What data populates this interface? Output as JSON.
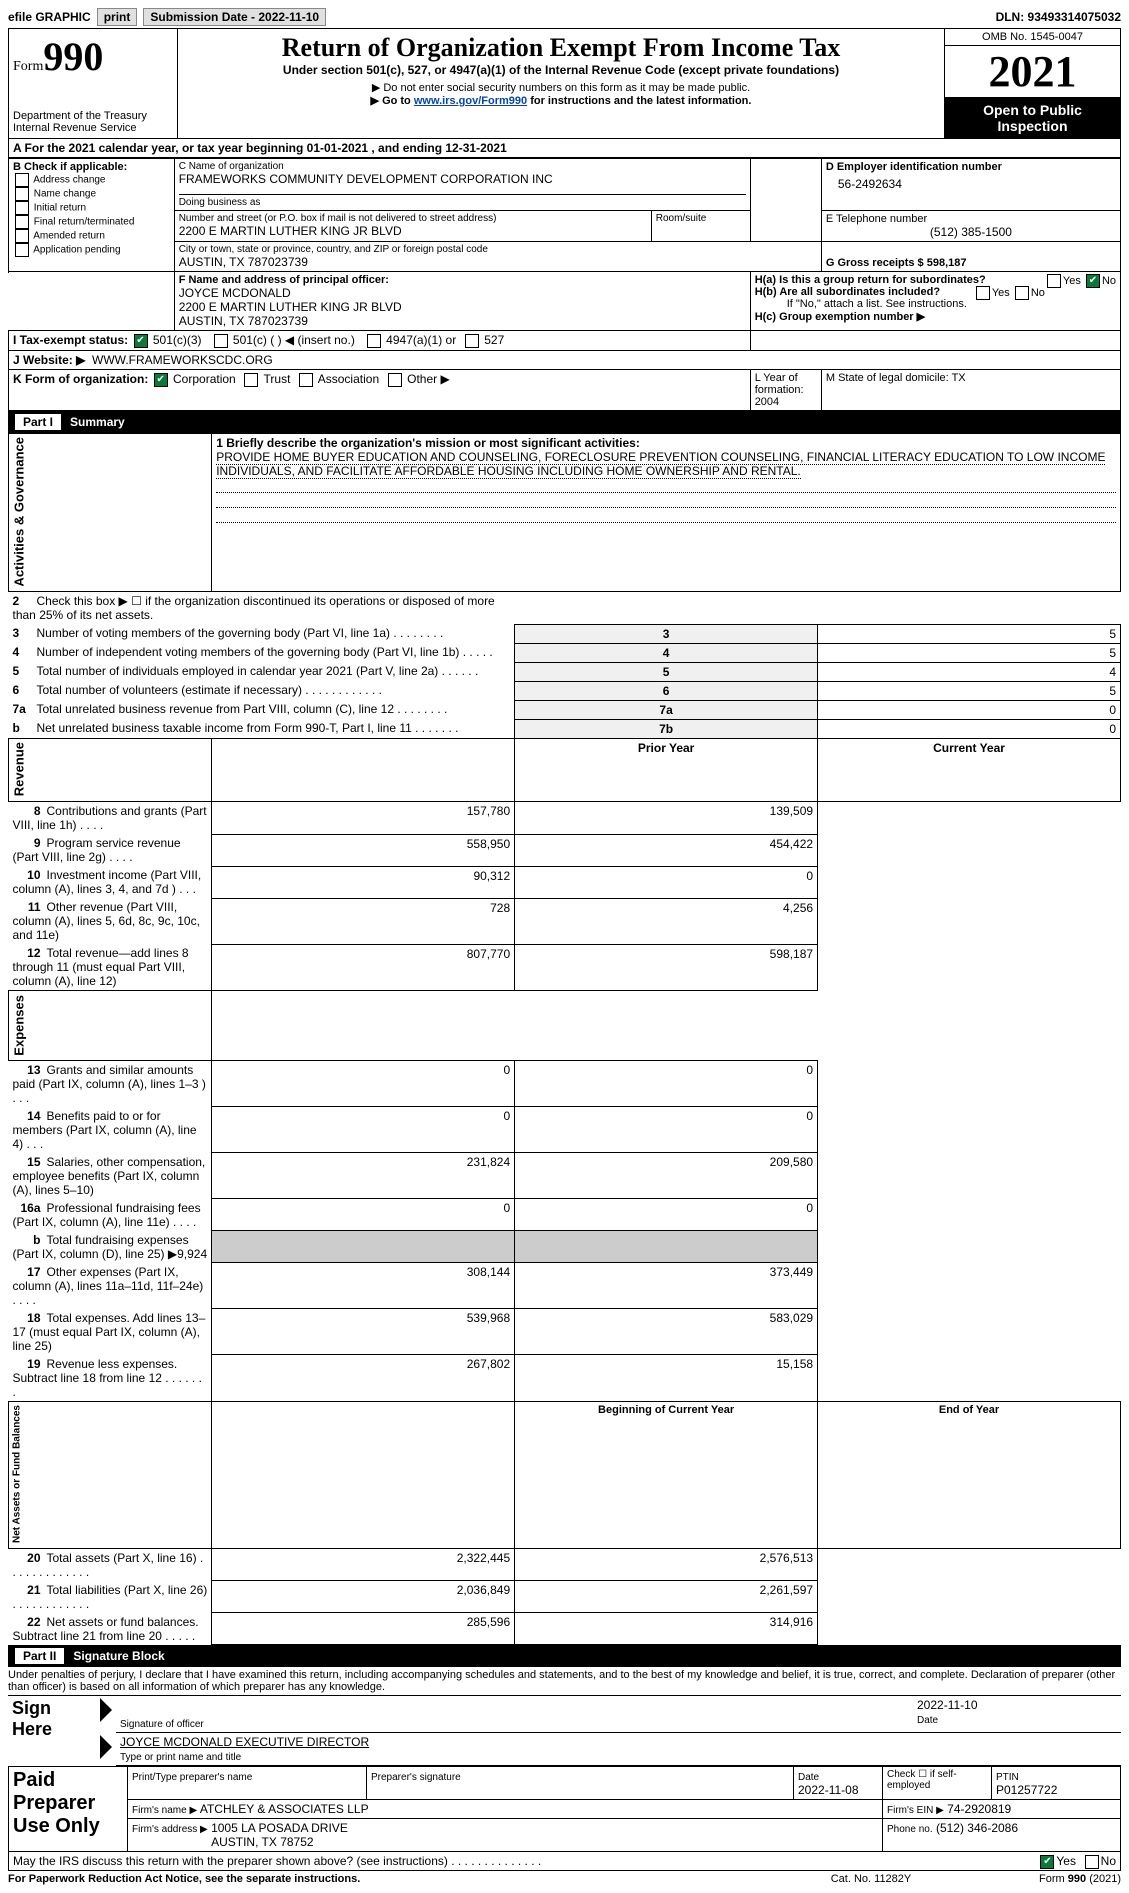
{
  "header": {
    "efile_label": "efile GRAPHIC",
    "print_btn": "print",
    "submission_label": "Submission Date - 2022-11-10",
    "dln_label": "DLN: 93493314075032",
    "form_word": "Form",
    "form_num": "990",
    "dept": "Department of the Treasury\nInternal Revenue Service",
    "title": "Return of Organization Exempt From Income Tax",
    "subtitle": "Under section 501(c), 527, or 4947(a)(1) of the Internal Revenue Code (except private foundations)",
    "note1": "▶ Do not enter social security numbers on this form as it may be made public.",
    "note2_pre": "▶ Go to ",
    "note2_link": "www.irs.gov/Form990",
    "note2_post": " for instructions and the latest information.",
    "omb": "OMB No. 1545-0047",
    "year": "2021",
    "inspection": "Open to Public Inspection"
  },
  "blockA": {
    "period": "A For the 2021 calendar year, or tax year beginning 01-01-2021    , and ending 12-31-2021",
    "b_label": "B Check if applicable:",
    "checks": [
      "Address change",
      "Name change",
      "Initial return",
      "Final return/terminated",
      "Amended return",
      "Application pending"
    ],
    "c_name_label": "C Name of organization",
    "org_name": "FRAMEWORKS COMMUNITY DEVELOPMENT CORPORATION INC",
    "dba_label": "Doing business as",
    "addr_label": "Number and street (or P.O. box if mail is not delivered to street address)",
    "room_label": "Room/suite",
    "addr": "2200 E MARTIN LUTHER KING JR BLVD",
    "city_label": "City or town, state or province, country, and ZIP or foreign postal code",
    "city": "AUSTIN, TX  787023739",
    "d_label": "D Employer identification number",
    "ein": "56-2492634",
    "e_label": "E Telephone number",
    "phone": "(512) 385-1500",
    "g_label": "G Gross receipts $ 598,187",
    "f_label": "F Name and address of principal officer:",
    "officer": "JOYCE MCDONALD\n2200 E MARTIN LUTHER KING JR BLVD\nAUSTIN, TX  787023739",
    "ha": "H(a)  Is this a group return for subordinates?",
    "hb": "H(b)  Are all subordinates included?",
    "hb_note": "If \"No,\" attach a list. See instructions.",
    "hc": "H(c)  Group exemption number ▶",
    "yes": "Yes",
    "no": "No",
    "i_label": "I     Tax-exempt status:",
    "i_opts": [
      "501(c)(3)",
      "501(c) (  ) ◀ (insert no.)",
      "4947(a)(1) or",
      "527"
    ],
    "j_label": "J     Website: ▶",
    "website": "WWW.FRAMEWORKSCDC.ORG",
    "k_label": "K Form of organization:",
    "k_opts": [
      "Corporation",
      "Trust",
      "Association",
      "Other ▶"
    ],
    "l_label": "L Year of formation: 2004",
    "m_label": "M State of legal domicile: TX"
  },
  "part1": {
    "title": "Part I",
    "name": "Summary",
    "q1_label": "1  Briefly describe the organization's mission or most significant activities:",
    "mission": "PROVIDE HOME BUYER EDUCATION AND COUNSELING, FORECLOSURE PREVENTION COUNSELING, FINANCIAL LITERACY EDUCATION TO LOW INCOME INDIVIDUALS, AND FACILITATE AFFORDABLE HOUSING INCLUDING HOME OWNERSHIP AND RENTAL.",
    "sections": {
      "gov": "Activities & Governance",
      "rev": "Revenue",
      "exp": "Expenses",
      "net": "Net Assets or Fund Balances"
    },
    "lines_gov": [
      {
        "n": "2",
        "t": "Check this box ▶ ☐  if the organization discontinued its operations or disposed of more than 25% of its net assets.",
        "box": "",
        "v": ""
      },
      {
        "n": "3",
        "t": "Number of voting members of the governing body (Part VI, line 1a)   .    .    .    .    .    .    .    .",
        "box": "3",
        "v": "5"
      },
      {
        "n": "4",
        "t": "Number of independent voting members of the governing body (Part VI, line 1b)   .    .    .    .    .",
        "box": "4",
        "v": "5"
      },
      {
        "n": "5",
        "t": "Total number of individuals employed in calendar year 2021 (Part V, line 2a)   .    .    .    .    .    .",
        "box": "5",
        "v": "4"
      },
      {
        "n": "6",
        "t": "Total number of volunteers (estimate if necessary)    .    .    .    .    .    .    .    .    .    .    .    .",
        "box": "6",
        "v": "5"
      },
      {
        "n": "7a",
        "t": "Total unrelated business revenue from Part VIII, column (C), line 12   .    .    .    .    .    .    .    .",
        "box": "7a",
        "v": "0"
      },
      {
        "n": "b",
        "t": "Net unrelated business taxable income from Form 990-T, Part I, line 11   .    .    .    .    .    .    .",
        "box": "7b",
        "v": "0"
      }
    ],
    "col_prior": "Prior Year",
    "col_current": "Current Year",
    "lines_rev": [
      {
        "n": "8",
        "t": "Contributions and grants (Part VIII, line 1h)    .    .    .    .",
        "p": "157,780",
        "c": "139,509"
      },
      {
        "n": "9",
        "t": "Program service revenue (Part VIII, line 2g)     .    .    .    .",
        "p": "558,950",
        "c": "454,422"
      },
      {
        "n": "10",
        "t": "Investment income (Part VIII, column (A), lines 3, 4, and 7d )    .    .    .",
        "p": "90,312",
        "c": "0"
      },
      {
        "n": "11",
        "t": "Other revenue (Part VIII, column (A), lines 5, 6d, 8c, 9c, 10c, and 11e)",
        "p": "728",
        "c": "4,256"
      },
      {
        "n": "12",
        "t": "Total revenue—add lines 8 through 11 (must equal Part VIII, column (A), line 12)",
        "p": "807,770",
        "c": "598,187"
      }
    ],
    "lines_exp": [
      {
        "n": "13",
        "t": "Grants and similar amounts paid (Part IX, column (A), lines 1–3 )    .    .    .",
        "p": "0",
        "c": "0"
      },
      {
        "n": "14",
        "t": "Benefits paid to or for members (Part IX, column (A), line 4)    .    .    .",
        "p": "0",
        "c": "0"
      },
      {
        "n": "15",
        "t": "Salaries, other compensation, employee benefits (Part IX, column (A), lines 5–10)",
        "p": "231,824",
        "c": "209,580"
      },
      {
        "n": "16a",
        "t": "Professional fundraising fees (Part IX, column (A), line 11e)    .    .    .    .",
        "p": "0",
        "c": "0"
      },
      {
        "n": "b",
        "t": "Total fundraising expenses (Part IX, column (D), line 25) ▶9,924",
        "p": "",
        "c": "",
        "shade": true
      },
      {
        "n": "17",
        "t": "Other expenses (Part IX, column (A), lines 11a–11d, 11f–24e)    .    .    .    .",
        "p": "308,144",
        "c": "373,449"
      },
      {
        "n": "18",
        "t": "Total expenses. Add lines 13–17 (must equal Part IX, column (A), line 25)",
        "p": "539,968",
        "c": "583,029"
      },
      {
        "n": "19",
        "t": "Revenue less expenses. Subtract line 18 from line 12  .    .    .    .    .    .    .",
        "p": "267,802",
        "c": "15,158"
      }
    ],
    "col_begin": "Beginning of Current Year",
    "col_end": "End of Year",
    "lines_net": [
      {
        "n": "20",
        "t": "Total assets (Part X, line 16)  .    .    .    .    .    .    .    .    .    .    .    .    .",
        "p": "2,322,445",
        "c": "2,576,513"
      },
      {
        "n": "21",
        "t": "Total liabilities (Part X, line 26)   .    .    .    .    .    .    .    .    .    .    .    .",
        "p": "2,036,849",
        "c": "2,261,597"
      },
      {
        "n": "22",
        "t": "Net assets or fund balances. Subtract line 21 from line 20   .    .    .    .    .",
        "p": "285,596",
        "c": "314,916"
      }
    ]
  },
  "part2": {
    "title": "Part II",
    "name": "Signature Block",
    "perjury": "Under penalties of perjury, I declare that I have examined this return, including accompanying schedules and statements, and to the best of my knowledge and belief, it is true, correct, and complete. Declaration of preparer (other than officer) is based on all information of which preparer has any knowledge.",
    "sign_here": "Sign Here",
    "sig_officer": "Signature of officer",
    "sig_date": "2022-11-10",
    "date_label": "Date",
    "officer_name": "JOYCE MCDONALD  EXECUTIVE DIRECTOR",
    "type_name": "Type or print name and title",
    "paid": "Paid Preparer Use Only",
    "prep_name_label": "Print/Type preparer's name",
    "prep_sig_label": "Preparer's signature",
    "prep_date_label": "Date",
    "prep_date": "2022-11-08",
    "self_emp": "Check ☐ if self-employed",
    "ptin_label": "PTIN",
    "ptin": "P01257722",
    "firm_name_label": "Firm's name    ▶",
    "firm_name": "ATCHLEY & ASSOCIATES LLP",
    "firm_ein_label": "Firm's EIN ▶",
    "firm_ein": "74-2920819",
    "firm_addr_label": "Firm's address ▶",
    "firm_addr": "1005 LA POSADA DRIVE\nAUSTIN, TX  78752",
    "firm_phone_label": "Phone no.",
    "firm_phone": "(512) 346-2086",
    "discuss": "May the IRS discuss this return with the preparer shown above? (see instructions)    .    .    .    .    .    .    .    .    .    .    .    .    .    .",
    "footer_left": "For Paperwork Reduction Act Notice, see the separate instructions.",
    "footer_mid": "Cat. No. 11282Y",
    "footer_right": "Form 990 (2021)"
  }
}
